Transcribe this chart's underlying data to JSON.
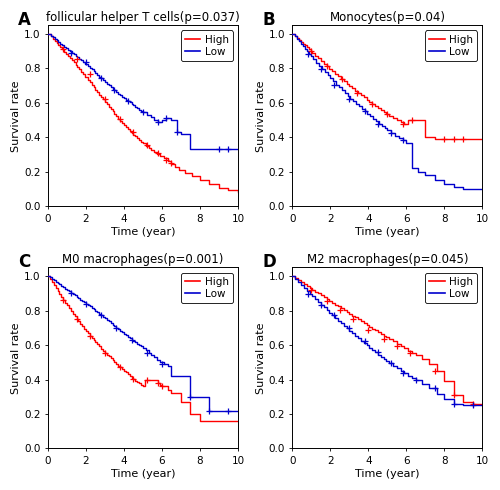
{
  "panels": [
    {
      "label": "A",
      "title": "follicular helper T cells(p=0.037)",
      "high_times": [
        0,
        0.15,
        0.25,
        0.35,
        0.45,
        0.55,
        0.65,
        0.75,
        0.85,
        0.95,
        1.05,
        1.15,
        1.25,
        1.35,
        1.45,
        1.55,
        1.65,
        1.75,
        1.85,
        1.95,
        2.1,
        2.2,
        2.3,
        2.4,
        2.5,
        2.6,
        2.7,
        2.8,
        2.9,
        3.0,
        3.1,
        3.2,
        3.3,
        3.4,
        3.5,
        3.6,
        3.7,
        3.8,
        3.9,
        4.0,
        4.1,
        4.2,
        4.3,
        4.4,
        4.5,
        4.6,
        4.7,
        4.8,
        4.9,
        5.0,
        5.15,
        5.3,
        5.45,
        5.6,
        5.75,
        5.9,
        6.1,
        6.3,
        6.5,
        6.7,
        6.9,
        7.2,
        7.6,
        8.0,
        8.5,
        9.0,
        9.5,
        10.0
      ],
      "high_surv": [
        1.0,
        0.985,
        0.972,
        0.96,
        0.948,
        0.935,
        0.922,
        0.91,
        0.897,
        0.885,
        0.872,
        0.86,
        0.847,
        0.835,
        0.822,
        0.808,
        0.794,
        0.78,
        0.766,
        0.752,
        0.735,
        0.72,
        0.705,
        0.69,
        0.675,
        0.662,
        0.648,
        0.634,
        0.62,
        0.606,
        0.592,
        0.578,
        0.564,
        0.55,
        0.536,
        0.522,
        0.508,
        0.495,
        0.482,
        0.47,
        0.458,
        0.447,
        0.436,
        0.425,
        0.415,
        0.405,
        0.395,
        0.385,
        0.375,
        0.365,
        0.352,
        0.34,
        0.328,
        0.316,
        0.304,
        0.292,
        0.278,
        0.262,
        0.245,
        0.228,
        0.21,
        0.195,
        0.175,
        0.155,
        0.13,
        0.105,
        0.092,
        0.085
      ],
      "low_times": [
        0,
        0.15,
        0.25,
        0.35,
        0.45,
        0.55,
        0.65,
        0.75,
        0.85,
        0.95,
        1.05,
        1.15,
        1.25,
        1.35,
        1.45,
        1.55,
        1.65,
        1.75,
        1.85,
        1.95,
        2.1,
        2.2,
        2.3,
        2.4,
        2.5,
        2.6,
        2.7,
        2.8,
        2.9,
        3.0,
        3.1,
        3.2,
        3.3,
        3.4,
        3.5,
        3.6,
        3.7,
        3.8,
        3.9,
        4.0,
        4.1,
        4.2,
        4.3,
        4.4,
        4.5,
        4.6,
        4.7,
        4.8,
        4.9,
        5.0,
        5.2,
        5.4,
        5.6,
        5.8,
        6.0,
        6.2,
        6.5,
        6.8,
        7.0,
        7.5,
        8.0,
        8.5,
        9.0,
        9.5,
        10.0
      ],
      "low_surv": [
        1.0,
        0.99,
        0.98,
        0.971,
        0.962,
        0.953,
        0.944,
        0.935,
        0.926,
        0.917,
        0.908,
        0.899,
        0.89,
        0.882,
        0.873,
        0.864,
        0.855,
        0.846,
        0.837,
        0.828,
        0.816,
        0.805,
        0.794,
        0.783,
        0.772,
        0.762,
        0.752,
        0.742,
        0.732,
        0.722,
        0.712,
        0.702,
        0.692,
        0.682,
        0.672,
        0.663,
        0.654,
        0.645,
        0.636,
        0.627,
        0.618,
        0.61,
        0.602,
        0.594,
        0.585,
        0.577,
        0.569,
        0.561,
        0.553,
        0.545,
        0.531,
        0.517,
        0.503,
        0.49,
        0.502,
        0.514,
        0.502,
        0.43,
        0.42,
        0.33,
        0.33,
        0.33,
        0.33,
        0.33,
        0.33
      ],
      "high_censor_x": [
        0.8,
        1.5,
        2.2,
        3.0,
        3.8,
        4.5,
        5.2,
        5.8,
        6.2,
        6.5
      ],
      "high_censor_y": [
        0.91,
        0.852,
        0.766,
        0.62,
        0.508,
        0.43,
        0.358,
        0.31,
        0.266,
        0.252
      ],
      "low_censor_x": [
        1.2,
        2.0,
        2.8,
        3.5,
        4.2,
        5.0,
        5.8,
        6.2,
        6.8,
        9.0,
        9.5
      ],
      "low_censor_y": [
        0.89,
        0.837,
        0.742,
        0.672,
        0.61,
        0.545,
        0.49,
        0.514,
        0.43,
        0.33,
        0.33
      ]
    },
    {
      "label": "B",
      "title": "Monocytes(p=0.04)",
      "high_times": [
        0,
        0.15,
        0.25,
        0.35,
        0.45,
        0.55,
        0.65,
        0.75,
        0.85,
        0.95,
        1.05,
        1.2,
        1.35,
        1.5,
        1.65,
        1.8,
        1.95,
        2.1,
        2.25,
        2.4,
        2.55,
        2.7,
        2.85,
        3.0,
        3.15,
        3.3,
        3.45,
        3.6,
        3.75,
        3.9,
        4.05,
        4.2,
        4.35,
        4.5,
        4.65,
        4.8,
        4.95,
        5.1,
        5.3,
        5.5,
        5.7,
        5.9,
        6.1,
        6.3,
        6.5,
        7.0,
        7.5,
        8.0,
        8.5,
        9.0,
        9.5,
        10.0
      ],
      "high_surv": [
        1.0,
        0.988,
        0.977,
        0.966,
        0.955,
        0.944,
        0.933,
        0.922,
        0.911,
        0.9,
        0.889,
        0.874,
        0.858,
        0.843,
        0.828,
        0.813,
        0.798,
        0.783,
        0.769,
        0.754,
        0.74,
        0.726,
        0.712,
        0.698,
        0.684,
        0.671,
        0.658,
        0.645,
        0.632,
        0.619,
        0.607,
        0.594,
        0.582,
        0.57,
        0.558,
        0.547,
        0.536,
        0.525,
        0.512,
        0.5,
        0.488,
        0.476,
        0.5,
        0.5,
        0.5,
        0.4,
        0.39,
        0.39,
        0.39,
        0.39,
        0.39,
        0.39
      ],
      "low_times": [
        0,
        0.15,
        0.25,
        0.35,
        0.45,
        0.55,
        0.65,
        0.75,
        0.85,
        0.95,
        1.1,
        1.25,
        1.4,
        1.55,
        1.7,
        1.85,
        2.0,
        2.15,
        2.3,
        2.45,
        2.6,
        2.75,
        2.9,
        3.05,
        3.2,
        3.35,
        3.5,
        3.65,
        3.8,
        3.95,
        4.1,
        4.25,
        4.4,
        4.55,
        4.7,
        4.85,
        5.0,
        5.2,
        5.4,
        5.6,
        5.8,
        6.0,
        6.3,
        6.6,
        7.0,
        7.5,
        8.0,
        8.5,
        9.0,
        9.5,
        10.0
      ],
      "low_surv": [
        1.0,
        0.985,
        0.97,
        0.956,
        0.942,
        0.928,
        0.913,
        0.899,
        0.885,
        0.871,
        0.852,
        0.833,
        0.814,
        0.796,
        0.778,
        0.76,
        0.742,
        0.724,
        0.706,
        0.689,
        0.672,
        0.656,
        0.64,
        0.625,
        0.61,
        0.595,
        0.58,
        0.565,
        0.55,
        0.536,
        0.522,
        0.508,
        0.494,
        0.48,
        0.467,
        0.454,
        0.44,
        0.425,
        0.41,
        0.396,
        0.382,
        0.368,
        0.22,
        0.2,
        0.18,
        0.15,
        0.13,
        0.11,
        0.1,
        0.1,
        0.1
      ],
      "high_censor_x": [
        1.0,
        1.8,
        2.6,
        3.4,
        4.2,
        5.0,
        5.8,
        6.3,
        8.0,
        8.5,
        9.0
      ],
      "high_censor_y": [
        0.9,
        0.813,
        0.74,
        0.658,
        0.594,
        0.536,
        0.476,
        0.5,
        0.39,
        0.39,
        0.39
      ],
      "low_censor_x": [
        0.8,
        1.5,
        2.2,
        3.0,
        3.8,
        4.5,
        5.2,
        5.8
      ],
      "low_censor_y": [
        0.885,
        0.796,
        0.706,
        0.625,
        0.55,
        0.48,
        0.425,
        0.382
      ]
    },
    {
      "label": "C",
      "title": "M0 macrophages(p=0.001)",
      "high_times": [
        0,
        0.1,
        0.2,
        0.3,
        0.4,
        0.5,
        0.6,
        0.7,
        0.8,
        0.9,
        1.0,
        1.1,
        1.2,
        1.3,
        1.4,
        1.5,
        1.6,
        1.7,
        1.8,
        1.9,
        2.0,
        2.1,
        2.2,
        2.3,
        2.4,
        2.5,
        2.6,
        2.7,
        2.8,
        2.9,
        3.0,
        3.1,
        3.2,
        3.3,
        3.4,
        3.5,
        3.6,
        3.7,
        3.8,
        3.9,
        4.0,
        4.1,
        4.2,
        4.3,
        4.4,
        4.5,
        4.6,
        4.7,
        4.8,
        4.9,
        5.0,
        5.1,
        5.2,
        5.3,
        5.4,
        5.5,
        5.6,
        5.7,
        5.8,
        5.9,
        6.0,
        6.3,
        6.5,
        7.0,
        7.5,
        8.0,
        9.0,
        10.0
      ],
      "high_surv": [
        1.0,
        0.982,
        0.964,
        0.946,
        0.929,
        0.912,
        0.895,
        0.878,
        0.862,
        0.846,
        0.83,
        0.814,
        0.798,
        0.783,
        0.768,
        0.753,
        0.738,
        0.724,
        0.71,
        0.696,
        0.682,
        0.668,
        0.655,
        0.642,
        0.629,
        0.616,
        0.604,
        0.592,
        0.58,
        0.568,
        0.556,
        0.545,
        0.534,
        0.523,
        0.512,
        0.501,
        0.491,
        0.481,
        0.471,
        0.461,
        0.451,
        0.441,
        0.431,
        0.421,
        0.411,
        0.401,
        0.393,
        0.385,
        0.377,
        0.369,
        0.361,
        0.4,
        0.4,
        0.4,
        0.4,
        0.4,
        0.4,
        0.4,
        0.38,
        0.37,
        0.36,
        0.34,
        0.32,
        0.27,
        0.2,
        0.16,
        0.16,
        0.16
      ],
      "low_times": [
        0,
        0.1,
        0.2,
        0.3,
        0.4,
        0.5,
        0.6,
        0.7,
        0.8,
        0.9,
        1.0,
        1.1,
        1.2,
        1.3,
        1.4,
        1.5,
        1.6,
        1.7,
        1.8,
        1.9,
        2.0,
        2.1,
        2.2,
        2.3,
        2.4,
        2.5,
        2.6,
        2.7,
        2.8,
        2.9,
        3.0,
        3.1,
        3.2,
        3.3,
        3.4,
        3.5,
        3.6,
        3.7,
        3.8,
        3.9,
        4.0,
        4.1,
        4.2,
        4.3,
        4.4,
        4.5,
        4.6,
        4.7,
        4.8,
        4.9,
        5.0,
        5.15,
        5.3,
        5.45,
        5.6,
        5.75,
        5.9,
        6.1,
        6.3,
        6.5,
        7.0,
        7.5,
        8.0,
        8.5,
        9.0,
        9.5,
        10.0
      ],
      "low_surv": [
        1.0,
        0.992,
        0.984,
        0.976,
        0.968,
        0.96,
        0.952,
        0.944,
        0.936,
        0.928,
        0.92,
        0.912,
        0.904,
        0.896,
        0.888,
        0.88,
        0.872,
        0.864,
        0.856,
        0.848,
        0.84,
        0.832,
        0.824,
        0.816,
        0.808,
        0.8,
        0.791,
        0.782,
        0.773,
        0.764,
        0.755,
        0.746,
        0.737,
        0.728,
        0.719,
        0.71,
        0.701,
        0.692,
        0.683,
        0.674,
        0.665,
        0.656,
        0.648,
        0.64,
        0.632,
        0.624,
        0.616,
        0.608,
        0.6,
        0.592,
        0.584,
        0.57,
        0.556,
        0.542,
        0.528,
        0.514,
        0.5,
        0.49,
        0.48,
        0.42,
        0.42,
        0.3,
        0.3,
        0.22,
        0.22,
        0.22,
        0.22
      ],
      "high_censor_x": [
        0.8,
        1.5,
        2.2,
        3.0,
        3.8,
        4.5,
        5.2,
        5.8,
        6.0
      ],
      "high_censor_y": [
        0.862,
        0.753,
        0.655,
        0.556,
        0.471,
        0.401,
        0.4,
        0.38,
        0.36
      ],
      "low_censor_x": [
        1.2,
        2.0,
        2.8,
        3.6,
        4.4,
        5.2,
        6.0,
        7.5,
        8.5,
        9.5
      ],
      "low_censor_y": [
        0.904,
        0.84,
        0.773,
        0.701,
        0.632,
        0.556,
        0.49,
        0.3,
        0.22,
        0.22
      ]
    },
    {
      "label": "D",
      "title": "M2 macrophages(p=0.045)",
      "high_times": [
        0,
        0.15,
        0.3,
        0.45,
        0.6,
        0.75,
        0.9,
        1.05,
        1.2,
        1.35,
        1.5,
        1.65,
        1.8,
        1.95,
        2.1,
        2.25,
        2.4,
        2.55,
        2.7,
        2.85,
        3.0,
        3.15,
        3.3,
        3.45,
        3.6,
        3.75,
        3.9,
        4.05,
        4.2,
        4.35,
        4.5,
        4.65,
        4.8,
        4.95,
        5.1,
        5.3,
        5.5,
        5.7,
        5.9,
        6.1,
        6.3,
        6.5,
        6.8,
        7.2,
        7.6,
        8.0,
        8.5,
        9.0,
        9.5,
        10.0
      ],
      "high_surv": [
        1.0,
        0.988,
        0.976,
        0.965,
        0.954,
        0.943,
        0.932,
        0.921,
        0.91,
        0.9,
        0.889,
        0.878,
        0.867,
        0.856,
        0.845,
        0.835,
        0.824,
        0.813,
        0.802,
        0.792,
        0.781,
        0.77,
        0.76,
        0.749,
        0.739,
        0.728,
        0.717,
        0.707,
        0.696,
        0.686,
        0.675,
        0.665,
        0.655,
        0.645,
        0.635,
        0.622,
        0.608,
        0.595,
        0.582,
        0.568,
        0.555,
        0.542,
        0.52,
        0.49,
        0.45,
        0.39,
        0.31,
        0.27,
        0.26,
        0.255
      ],
      "low_times": [
        0,
        0.15,
        0.3,
        0.45,
        0.6,
        0.75,
        0.9,
        1.05,
        1.2,
        1.35,
        1.5,
        1.65,
        1.8,
        1.95,
        2.1,
        2.25,
        2.4,
        2.55,
        2.7,
        2.85,
        3.0,
        3.15,
        3.3,
        3.45,
        3.6,
        3.75,
        3.9,
        4.05,
        4.2,
        4.35,
        4.5,
        4.65,
        4.8,
        4.95,
        5.1,
        5.3,
        5.5,
        5.7,
        5.9,
        6.1,
        6.3,
        6.5,
        6.8,
        7.2,
        7.6,
        8.0,
        8.5,
        9.0,
        9.5,
        10.0
      ],
      "low_surv": [
        1.0,
        0.982,
        0.965,
        0.948,
        0.932,
        0.915,
        0.898,
        0.882,
        0.866,
        0.85,
        0.834,
        0.818,
        0.802,
        0.787,
        0.772,
        0.757,
        0.742,
        0.727,
        0.712,
        0.698,
        0.683,
        0.668,
        0.654,
        0.64,
        0.626,
        0.612,
        0.598,
        0.584,
        0.571,
        0.558,
        0.545,
        0.532,
        0.52,
        0.508,
        0.496,
        0.481,
        0.466,
        0.451,
        0.437,
        0.423,
        0.41,
        0.396,
        0.375,
        0.348,
        0.318,
        0.285,
        0.26,
        0.25,
        0.25,
        0.25
      ],
      "high_censor_x": [
        1.0,
        1.8,
        2.5,
        3.2,
        4.0,
        4.8,
        5.5,
        6.2,
        7.5,
        8.5,
        9.5
      ],
      "high_censor_y": [
        0.921,
        0.856,
        0.802,
        0.749,
        0.686,
        0.635,
        0.595,
        0.555,
        0.45,
        0.31,
        0.26
      ],
      "low_censor_x": [
        0.8,
        1.5,
        2.2,
        3.0,
        3.8,
        4.5,
        5.2,
        5.8,
        6.5,
        7.5,
        8.5,
        9.5
      ],
      "low_censor_y": [
        0.898,
        0.834,
        0.772,
        0.698,
        0.626,
        0.558,
        0.496,
        0.437,
        0.396,
        0.348,
        0.26,
        0.25
      ]
    }
  ],
  "high_color": "#FF0000",
  "low_color": "#0000CD",
  "bg_color": "#FFFFFF",
  "plot_bg_color": "#FFFFFF",
  "xlabel": "Time (year)",
  "ylabel": "Survival rate",
  "xlim": [
    0,
    10
  ],
  "ylim": [
    0.0,
    1.05
  ],
  "xticks": [
    0,
    2,
    4,
    6,
    8,
    10
  ],
  "yticks": [
    0.0,
    0.2,
    0.4,
    0.6,
    0.8,
    1.0
  ],
  "line_width": 1.0,
  "censor_size": 5,
  "label_fontsize": 12,
  "title_fontsize": 8.5,
  "tick_fontsize": 7.5,
  "axis_label_fontsize": 8,
  "legend_fontsize": 7.5
}
